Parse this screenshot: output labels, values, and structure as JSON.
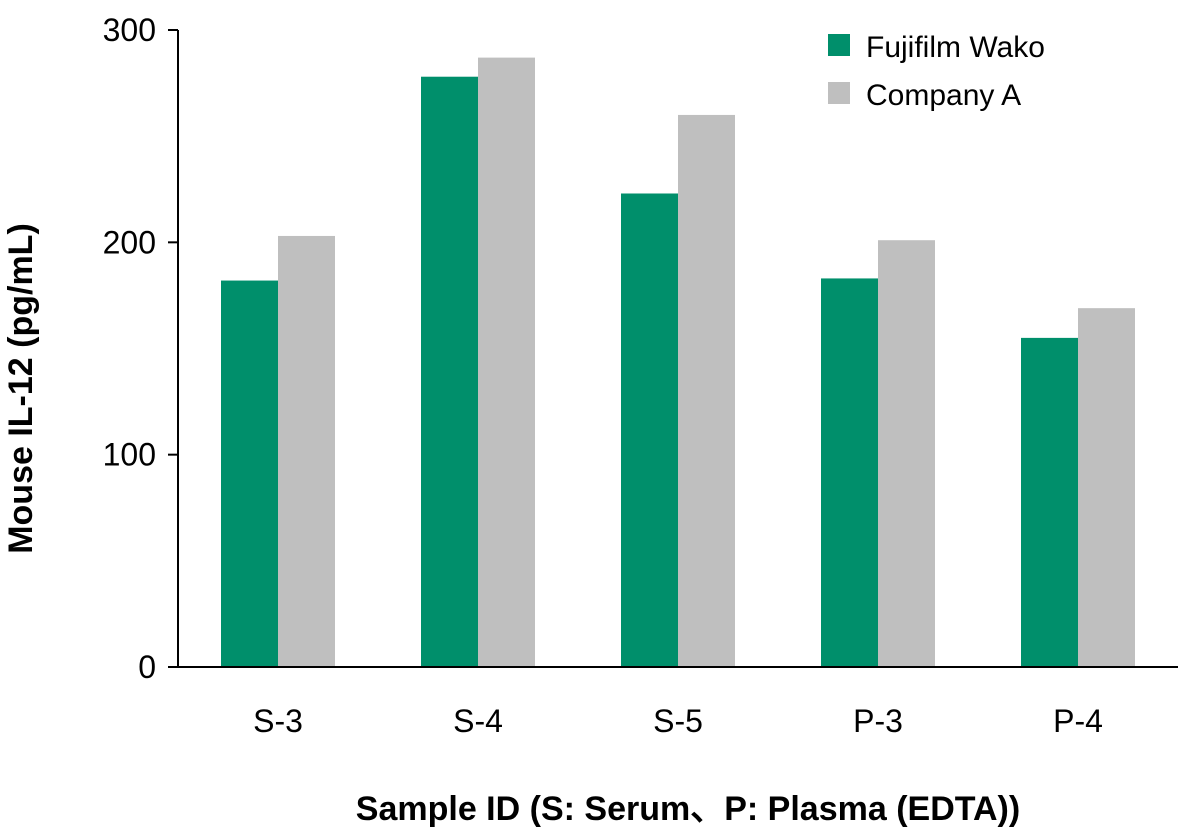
{
  "chart_data": {
    "type": "bar",
    "categories": [
      "S-3",
      "S-4",
      "S-5",
      "P-3",
      "P-4"
    ],
    "series": [
      {
        "name": "Fujifilm Wako",
        "color": "#008f6b",
        "values": [
          182,
          278,
          223,
          183,
          155
        ]
      },
      {
        "name": "Company A",
        "color": "#bfbfbf",
        "values": [
          203,
          287,
          260,
          201,
          169
        ]
      }
    ],
    "title": "",
    "xlabel": "Sample ID (S: Serum、P: Plasma (EDTA))",
    "ylabel": "Mouse IL-12 (pg/mL)",
    "ylim": [
      0,
      300
    ],
    "yticks": [
      0,
      100,
      200,
      300
    ],
    "grid": false,
    "legend_position": "top-right"
  }
}
